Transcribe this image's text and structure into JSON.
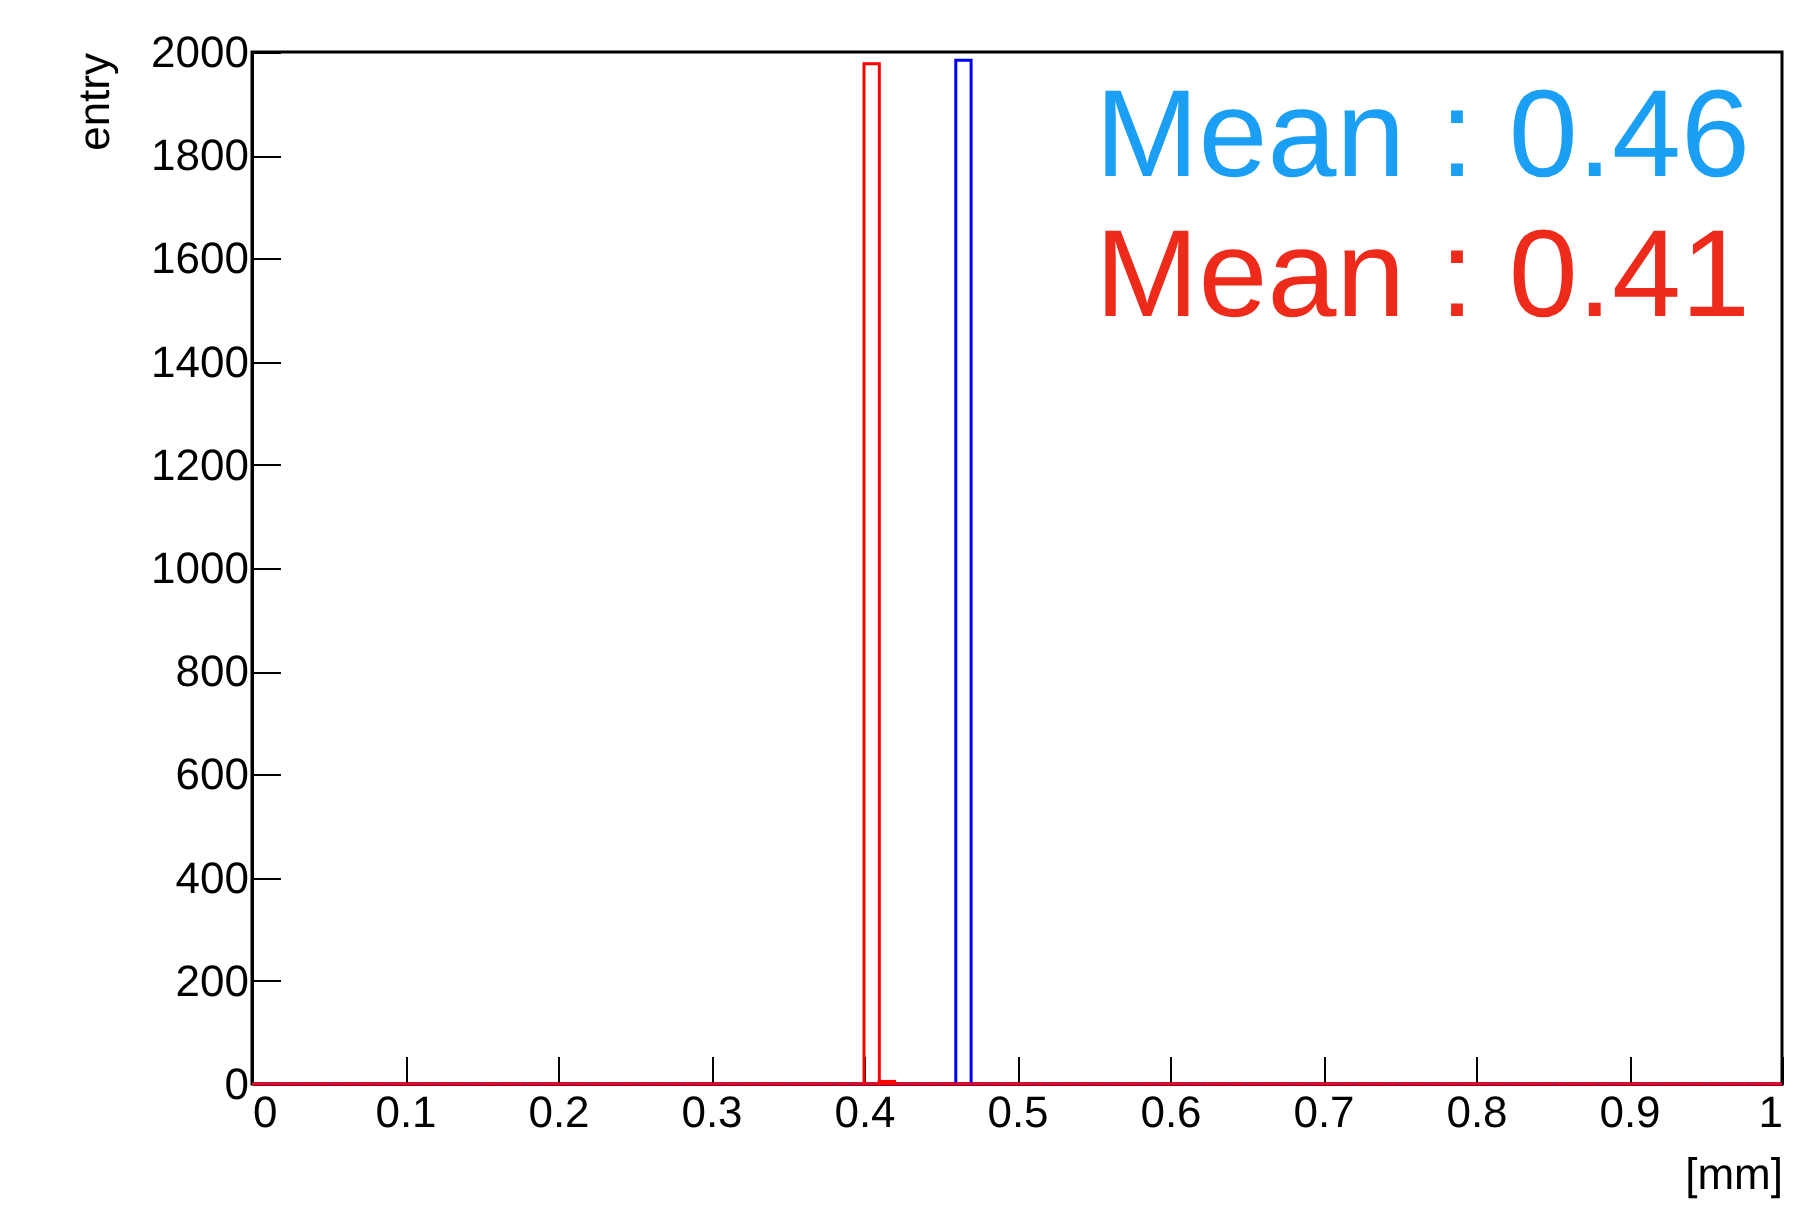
{
  "chart_data": {
    "type": "histogram",
    "xlabel": "[mm]",
    "ylabel": "entry",
    "bins": [
      0,
      0.01,
      0.02,
      0.03,
      0.04,
      0.05,
      0.06,
      0.07,
      0.08,
      0.09,
      0.1,
      0.11,
      0.12,
      0.13,
      0.14,
      0.15,
      0.16,
      0.17,
      0.18,
      0.19,
      0.2,
      0.21,
      0.22,
      0.23,
      0.24,
      0.25,
      0.26,
      0.27,
      0.28,
      0.29,
      0.3,
      0.31,
      0.32,
      0.33,
      0.34,
      0.35,
      0.36,
      0.37,
      0.38,
      0.39,
      0.4,
      0.41,
      0.42,
      0.43,
      0.44,
      0.45,
      0.46,
      0.47,
      0.48,
      0.49,
      0.5,
      0.51,
      0.52,
      0.53,
      0.54,
      0.55,
      0.56,
      0.57,
      0.58,
      0.59,
      0.6,
      0.61,
      0.62,
      0.63,
      0.64,
      0.65,
      0.66,
      0.67,
      0.68,
      0.69,
      0.7,
      0.71,
      0.72,
      0.73,
      0.74,
      0.75,
      0.76,
      0.77,
      0.78,
      0.79,
      0.8,
      0.81,
      0.82,
      0.83,
      0.84,
      0.85,
      0.86,
      0.87,
      0.88,
      0.89,
      0.9,
      0.91,
      0.92,
      0.93,
      0.94,
      0.95,
      0.96,
      0.97,
      0.98,
      0.99,
      1
    ],
    "series": [
      {
        "color": "#0000ff",
        "values": [
          0,
          0,
          0,
          0,
          0,
          0,
          0,
          0,
          0,
          0,
          0,
          0,
          0,
          0,
          0,
          0,
          0,
          0,
          0,
          0,
          0,
          0,
          0,
          0,
          0,
          0,
          0,
          0,
          0,
          0,
          0,
          0,
          0,
          0,
          0,
          0,
          0,
          0,
          0,
          0,
          0,
          0,
          0,
          0,
          0,
          0,
          1984,
          0,
          0,
          0,
          0,
          0,
          0,
          0,
          0,
          0,
          0,
          0,
          0,
          0,
          0,
          0,
          0,
          0,
          0,
          0,
          0,
          0,
          0,
          0,
          0,
          0,
          0,
          0,
          0,
          0,
          0,
          0,
          0,
          0,
          0,
          0,
          0,
          0,
          0,
          0,
          0,
          0,
          0,
          0,
          0,
          0,
          0,
          0,
          0,
          0,
          0,
          0,
          0,
          0
        ]
      },
      {
        "color": "#ff0000",
        "values": [
          0,
          0,
          0,
          0,
          0,
          0,
          0,
          0,
          0,
          0,
          0,
          0,
          0,
          0,
          0,
          0,
          0,
          0,
          0,
          0,
          0,
          0,
          0,
          0,
          0,
          0,
          0,
          0,
          0,
          0,
          0,
          0,
          0,
          0,
          0,
          0,
          0,
          0,
          0,
          0,
          1977,
          5,
          0,
          0,
          0,
          0,
          0,
          0,
          0,
          0,
          0,
          0,
          0,
          0,
          0,
          0,
          0,
          0,
          0,
          0,
          0,
          0,
          0,
          0,
          0,
          0,
          0,
          0,
          0,
          0,
          0,
          0,
          0,
          0,
          0,
          0,
          0,
          0,
          0,
          0,
          0,
          0,
          0,
          0,
          0,
          0,
          0,
          0,
          0,
          0,
          0,
          0,
          0,
          0,
          0,
          0,
          0,
          0,
          0,
          0
        ]
      }
    ],
    "annotations": [
      "Mean : 0.46",
      "Mean : 0.41"
    ],
    "xlim": [
      0,
      1
    ],
    "xticks": [
      0,
      0.1,
      0.2,
      0.3,
      0.4,
      0.5,
      0.6,
      0.7,
      0.8,
      0.9,
      1
    ],
    "ylim": [
      0,
      2000
    ],
    "yticks": [
      0,
      200,
      400,
      600,
      800,
      1000,
      1200,
      1400,
      1600,
      1800,
      2000
    ],
    "grid": false,
    "legend": false
  }
}
